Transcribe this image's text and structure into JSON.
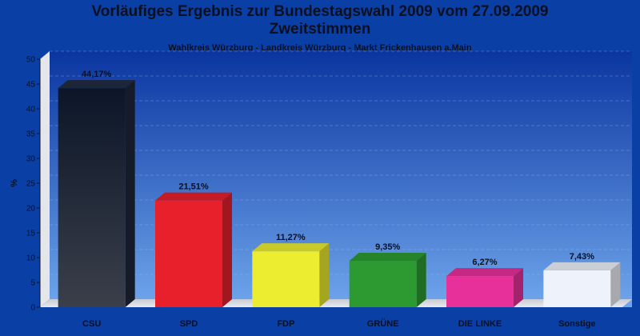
{
  "chart_data": {
    "type": "bar",
    "title_line1": "Vorläufiges Ergebnis zur Bundestagswahl 2009 vom 27.09.2009",
    "title_line2": "Zweitstimmen",
    "subtitle": "Wahlkreis Würzburg - Landkreis Würzburg - Markt Frickenhausen a.Main",
    "ylabel": "%",
    "xlabel": "",
    "ylim": [
      0,
      50
    ],
    "yticks": [
      0,
      5,
      10,
      15,
      20,
      25,
      30,
      35,
      40,
      45,
      50
    ],
    "grid": true,
    "categories": [
      "CSU",
      "SPD",
      "FDP",
      "GRÜNE",
      "DIE LINKE",
      "Sonstige"
    ],
    "values": [
      44.17,
      21.51,
      11.27,
      9.35,
      6.27,
      7.43
    ],
    "value_labels": [
      "44,17%",
      "21,51%",
      "11,27%",
      "9,35%",
      "6,27%",
      "7,43%"
    ],
    "colors": [
      "#1a2233",
      "#e8202c",
      "#ecec30",
      "#2c9a30",
      "#e8309a",
      "#eef2fa"
    ]
  }
}
